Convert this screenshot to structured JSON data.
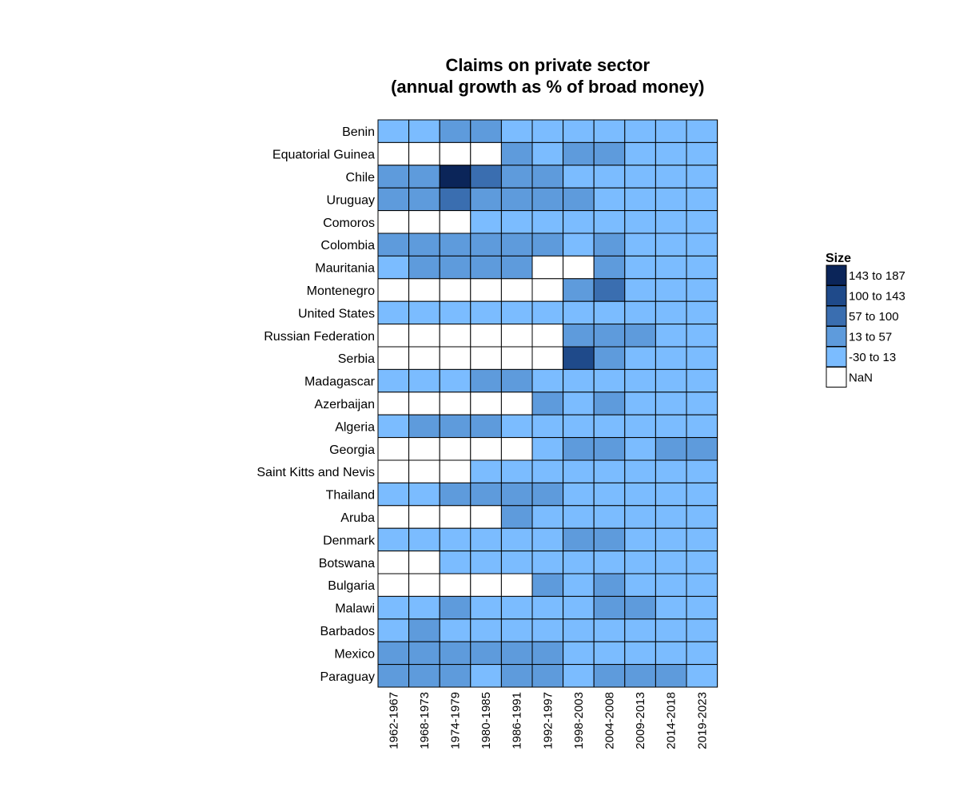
{
  "chart_data": {
    "type": "heatmap",
    "title_lines": [
      "Claims on private sector",
      "(annual growth as % of broad money)"
    ],
    "xlabel": "",
    "ylabel": "",
    "columns": [
      "1962-1967",
      "1968-1973",
      "1974-1979",
      "1980-1985",
      "1986-1991",
      "1992-1997",
      "1998-2003",
      "2004-2008",
      "2009-2013",
      "2014-2018",
      "2019-2023"
    ],
    "rows": [
      "Benin",
      "Equatorial Guinea",
      "Chile",
      "Uruguay",
      "Comoros",
      "Colombia",
      "Mauritania",
      "Montenegro",
      "United States",
      "Russian Federation",
      "Serbia",
      "Madagascar",
      "Azerbaijan",
      "Algeria",
      "Georgia",
      "Saint Kitts and Nevis",
      "Thailand",
      "Aruba",
      "Denmark",
      "Botswana",
      "Bulgaria",
      "Malawi",
      "Barbados",
      "Mexico",
      "Paraguay"
    ],
    "legend": {
      "title": "Size",
      "bins": [
        {
          "label": "143 to 187",
          "color": "#0b2559"
        },
        {
          "label": "100 to 143",
          "color": "#1f4a8a"
        },
        {
          "label": "57 to 100",
          "color": "#3a6eb0"
        },
        {
          "label": "13 to 57",
          "color": "#5e9bdc"
        },
        {
          "label": "-30 to 13",
          "color": "#7bbcff"
        },
        {
          "label": "NaN",
          "color": "#ffffff"
        }
      ]
    },
    "bin_matrix": [
      [
        "-30 to 13",
        "-30 to 13",
        "13 to 57",
        "13 to 57",
        "-30 to 13",
        "-30 to 13",
        "-30 to 13",
        "-30 to 13",
        "-30 to 13",
        "-30 to 13",
        "-30 to 13"
      ],
      [
        "NaN",
        "NaN",
        "NaN",
        "NaN",
        "13 to 57",
        "-30 to 13",
        "13 to 57",
        "13 to 57",
        "-30 to 13",
        "-30 to 13",
        "-30 to 13"
      ],
      [
        "13 to 57",
        "13 to 57",
        "143 to 187",
        "57 to 100",
        "13 to 57",
        "13 to 57",
        "-30 to 13",
        "-30 to 13",
        "-30 to 13",
        "-30 to 13",
        "-30 to 13"
      ],
      [
        "13 to 57",
        "13 to 57",
        "57 to 100",
        "13 to 57",
        "13 to 57",
        "13 to 57",
        "13 to 57",
        "-30 to 13",
        "-30 to 13",
        "-30 to 13",
        "-30 to 13"
      ],
      [
        "NaN",
        "NaN",
        "NaN",
        "-30 to 13",
        "-30 to 13",
        "-30 to 13",
        "-30 to 13",
        "-30 to 13",
        "-30 to 13",
        "-30 to 13",
        "-30 to 13"
      ],
      [
        "13 to 57",
        "13 to 57",
        "13 to 57",
        "13 to 57",
        "13 to 57",
        "13 to 57",
        "-30 to 13",
        "13 to 57",
        "-30 to 13",
        "-30 to 13",
        "-30 to 13"
      ],
      [
        "-30 to 13",
        "13 to 57",
        "13 to 57",
        "13 to 57",
        "13 to 57",
        "NaN",
        "NaN",
        "13 to 57",
        "-30 to 13",
        "-30 to 13",
        "-30 to 13"
      ],
      [
        "NaN",
        "NaN",
        "NaN",
        "NaN",
        "NaN",
        "NaN",
        "13 to 57",
        "57 to 100",
        "-30 to 13",
        "-30 to 13",
        "-30 to 13"
      ],
      [
        "-30 to 13",
        "-30 to 13",
        "-30 to 13",
        "-30 to 13",
        "-30 to 13",
        "-30 to 13",
        "-30 to 13",
        "-30 to 13",
        "-30 to 13",
        "-30 to 13",
        "-30 to 13"
      ],
      [
        "NaN",
        "NaN",
        "NaN",
        "NaN",
        "NaN",
        "NaN",
        "13 to 57",
        "13 to 57",
        "13 to 57",
        "-30 to 13",
        "-30 to 13"
      ],
      [
        "NaN",
        "NaN",
        "NaN",
        "NaN",
        "NaN",
        "NaN",
        "100 to 143",
        "13 to 57",
        "-30 to 13",
        "-30 to 13",
        "-30 to 13"
      ],
      [
        "-30 to 13",
        "-30 to 13",
        "-30 to 13",
        "13 to 57",
        "13 to 57",
        "-30 to 13",
        "-30 to 13",
        "-30 to 13",
        "-30 to 13",
        "-30 to 13",
        "-30 to 13"
      ],
      [
        "NaN",
        "NaN",
        "NaN",
        "NaN",
        "NaN",
        "13 to 57",
        "-30 to 13",
        "13 to 57",
        "-30 to 13",
        "-30 to 13",
        "-30 to 13"
      ],
      [
        "-30 to 13",
        "13 to 57",
        "13 to 57",
        "13 to 57",
        "-30 to 13",
        "-30 to 13",
        "-30 to 13",
        "-30 to 13",
        "-30 to 13",
        "-30 to 13",
        "-30 to 13"
      ],
      [
        "NaN",
        "NaN",
        "NaN",
        "NaN",
        "NaN",
        "-30 to 13",
        "13 to 57",
        "13 to 57",
        "-30 to 13",
        "13 to 57",
        "13 to 57"
      ],
      [
        "NaN",
        "NaN",
        "NaN",
        "-30 to 13",
        "-30 to 13",
        "-30 to 13",
        "-30 to 13",
        "-30 to 13",
        "-30 to 13",
        "-30 to 13",
        "-30 to 13"
      ],
      [
        "-30 to 13",
        "-30 to 13",
        "13 to 57",
        "13 to 57",
        "13 to 57",
        "13 to 57",
        "-30 to 13",
        "-30 to 13",
        "-30 to 13",
        "-30 to 13",
        "-30 to 13"
      ],
      [
        "NaN",
        "NaN",
        "NaN",
        "NaN",
        "13 to 57",
        "-30 to 13",
        "-30 to 13",
        "-30 to 13",
        "-30 to 13",
        "-30 to 13",
        "-30 to 13"
      ],
      [
        "-30 to 13",
        "-30 to 13",
        "-30 to 13",
        "-30 to 13",
        "-30 to 13",
        "-30 to 13",
        "13 to 57",
        "13 to 57",
        "-30 to 13",
        "-30 to 13",
        "-30 to 13"
      ],
      [
        "NaN",
        "NaN",
        "-30 to 13",
        "-30 to 13",
        "-30 to 13",
        "-30 to 13",
        "-30 to 13",
        "-30 to 13",
        "-30 to 13",
        "-30 to 13",
        "-30 to 13"
      ],
      [
        "NaN",
        "NaN",
        "NaN",
        "NaN",
        "NaN",
        "13 to 57",
        "-30 to 13",
        "13 to 57",
        "-30 to 13",
        "-30 to 13",
        "-30 to 13"
      ],
      [
        "-30 to 13",
        "-30 to 13",
        "13 to 57",
        "-30 to 13",
        "-30 to 13",
        "-30 to 13",
        "-30 to 13",
        "13 to 57",
        "13 to 57",
        "-30 to 13",
        "-30 to 13"
      ],
      [
        "-30 to 13",
        "13 to 57",
        "-30 to 13",
        "-30 to 13",
        "-30 to 13",
        "-30 to 13",
        "-30 to 13",
        "-30 to 13",
        "-30 to 13",
        "-30 to 13",
        "-30 to 13"
      ],
      [
        "13 to 57",
        "13 to 57",
        "13 to 57",
        "13 to 57",
        "13 to 57",
        "13 to 57",
        "-30 to 13",
        "-30 to 13",
        "-30 to 13",
        "-30 to 13",
        "-30 to 13"
      ],
      [
        "13 to 57",
        "13 to 57",
        "13 to 57",
        "-30 to 13",
        "13 to 57",
        "13 to 57",
        "-30 to 13",
        "13 to 57",
        "13 to 57",
        "13 to 57",
        "-30 to 13"
      ]
    ]
  }
}
